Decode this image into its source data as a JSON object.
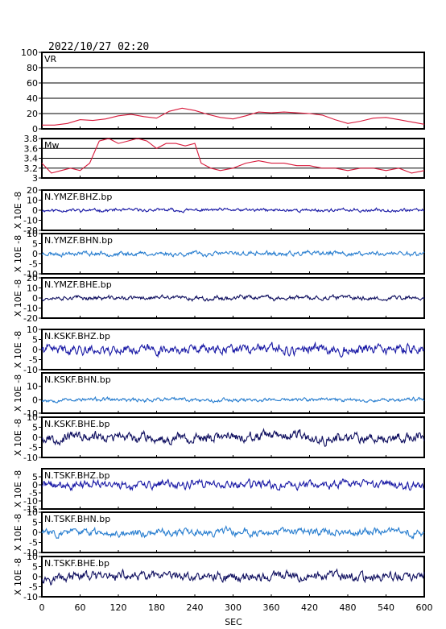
{
  "title": "2022/10/27 02:20",
  "x_axis": {
    "label": "SEC",
    "range": [
      0,
      600
    ],
    "ticks": [
      0,
      60,
      120,
      180,
      240,
      300,
      360,
      420,
      480,
      540,
      600
    ]
  },
  "wave_ylabel": "X 10E -8",
  "colors": {
    "vr": "#d81b3c",
    "mw": "#d81b3c",
    "bhz": "#1a1aa6",
    "bhn": "#2a7fd0",
    "bhe": "#101060"
  },
  "chart_data": [
    {
      "type": "line",
      "name": "VR",
      "label": "VR",
      "ylim": [
        0,
        100
      ],
      "yticks": [
        0,
        20,
        40,
        60,
        80,
        100
      ],
      "grid": true,
      "x": [
        0,
        20,
        40,
        60,
        80,
        100,
        120,
        140,
        160,
        180,
        200,
        220,
        240,
        260,
        280,
        300,
        320,
        340,
        360,
        380,
        400,
        420,
        440,
        460,
        480,
        500,
        520,
        540,
        560,
        580,
        600
      ],
      "y": [
        5,
        5,
        7,
        12,
        11,
        13,
        17,
        19,
        16,
        14,
        23,
        27,
        24,
        19,
        15,
        13,
        17,
        22,
        21,
        22,
        21,
        20,
        18,
        12,
        7,
        10,
        14,
        15,
        12,
        9,
        6
      ]
    },
    {
      "type": "line",
      "name": "Mw",
      "label": "Mw",
      "ylim": [
        3.0,
        3.8
      ],
      "yticks": [
        3.0,
        3.2,
        3.4,
        3.6,
        3.8
      ],
      "grid": true,
      "x": [
        0,
        15,
        30,
        45,
        60,
        75,
        90,
        105,
        120,
        135,
        150,
        165,
        180,
        195,
        210,
        225,
        240,
        250,
        265,
        280,
        300,
        320,
        340,
        360,
        380,
        400,
        420,
        440,
        460,
        480,
        500,
        520,
        540,
        560,
        580,
        600
      ],
      "y": [
        3.3,
        3.1,
        3.15,
        3.2,
        3.15,
        3.3,
        3.75,
        3.8,
        3.7,
        3.75,
        3.8,
        3.75,
        3.6,
        3.7,
        3.7,
        3.65,
        3.7,
        3.3,
        3.2,
        3.15,
        3.2,
        3.3,
        3.35,
        3.3,
        3.3,
        3.25,
        3.25,
        3.2,
        3.2,
        3.15,
        3.2,
        3.2,
        3.15,
        3.2,
        3.1,
        3.15
      ]
    },
    {
      "type": "line",
      "name": "N.YMZF.BHZ.bp",
      "label": "N.YMZF.BHZ.bp",
      "color_key": "bhz",
      "ylim": [
        -20,
        20
      ],
      "yticks": [
        -20,
        -10,
        0,
        10,
        20
      ],
      "amplitude": 1.1,
      "seed": 11
    },
    {
      "type": "line",
      "name": "N.YMZF.BHN.bp",
      "label": "N.YMZF.BHN.bp",
      "color_key": "bhn",
      "ylim": [
        -10,
        10
      ],
      "yticks": [
        -10,
        -5,
        0,
        5,
        10
      ],
      "amplitude": 0.8,
      "seed": 23
    },
    {
      "type": "line",
      "name": "N.YMZF.BHE.bp",
      "label": "N.YMZF.BHE.bp",
      "color_key": "bhe",
      "ylim": [
        -20,
        20
      ],
      "yticks": [
        -20,
        -10,
        0,
        10,
        20
      ],
      "amplitude": 1.5,
      "seed": 37
    },
    {
      "type": "line",
      "name": "N.KSKF.BHZ.bp",
      "label": "N.KSKF.BHZ.bp",
      "color_key": "bhz",
      "ylim": [
        -10,
        10
      ],
      "yticks": [
        -10,
        -5,
        0,
        5,
        10
      ],
      "amplitude": 1.6,
      "seed": 41,
      "offset": 0
    },
    {
      "type": "line",
      "name": "N.KSKF.BHN.bp",
      "label": "N.KSKF.BHN.bp",
      "color_key": "bhn",
      "ylim": [
        -10,
        20
      ],
      "yticks": [
        -10,
        0,
        10
      ],
      "amplitude": 1.0,
      "seed": 53
    },
    {
      "type": "line",
      "name": "N.KSKF.BHE.bp",
      "label": "N.KSKF.BHE.bp",
      "color_key": "bhe",
      "ylim": [
        -10,
        10
      ],
      "yticks": [
        -10,
        -5,
        0,
        5,
        10
      ],
      "amplitude": 1.7,
      "seed": 67
    },
    {
      "type": "line",
      "name": "N.TSKF.BHZ.bp",
      "label": "N.TSKF.BHZ.bp",
      "color_key": "bhz",
      "ylim": [
        -15,
        10
      ],
      "yticks": [
        -15,
        -10,
        -5,
        0,
        5
      ],
      "amplitude": 1.8,
      "seed": 71
    },
    {
      "type": "line",
      "name": "N.TSKF.BHN.bp",
      "label": "N.TSKF.BHN.bp",
      "color_key": "bhn",
      "ylim": [
        -10,
        10
      ],
      "yticks": [
        -10,
        -5,
        0,
        5,
        10
      ],
      "amplitude": 1.3,
      "seed": 83
    },
    {
      "type": "line",
      "name": "N.TSKF.BHE.bp",
      "label": "N.TSKF.BHE.bp",
      "color_key": "bhe",
      "ylim": [
        -10,
        10
      ],
      "yticks": [
        -10,
        -5,
        0,
        5,
        10
      ],
      "amplitude": 1.6,
      "seed": 97
    }
  ]
}
